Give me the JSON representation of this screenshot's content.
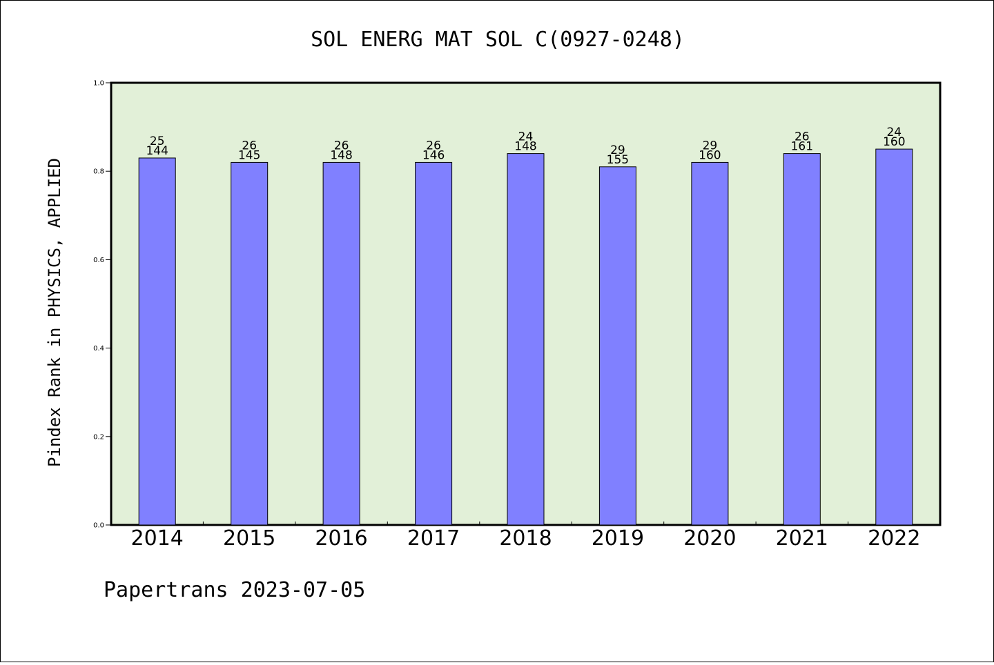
{
  "chart_data": {
    "type": "bar",
    "title": "SOL ENERG MAT SOL C(0927-0248)",
    "xlabel": "",
    "ylabel": "Pindex Rank in PHYSICS, APPLIED",
    "ylim": [
      0,
      1.0
    ],
    "yticks": [
      "0.0",
      "0.2",
      "0.4",
      "0.6",
      "0.8",
      "1.0"
    ],
    "categories": [
      "2014",
      "2015",
      "2016",
      "2017",
      "2018",
      "2019",
      "2020",
      "2021",
      "2022"
    ],
    "values": [
      0.83,
      0.82,
      0.82,
      0.82,
      0.84,
      0.81,
      0.82,
      0.84,
      0.85
    ],
    "rank_labels": [
      "25",
      "26",
      "26",
      "26",
      "24",
      "29",
      "29",
      "26",
      "24"
    ],
    "total_labels": [
      "144",
      "145",
      "148",
      "146",
      "148",
      "155",
      "160",
      "161",
      "160"
    ],
    "grid": false,
    "legend": "none",
    "colors": {
      "plot_background": "#e2f0d8",
      "bar_fill": "#8080ff",
      "bar_stroke": "#000000",
      "axis": "#000000"
    }
  },
  "footer": "Papertrans 2023-07-05"
}
